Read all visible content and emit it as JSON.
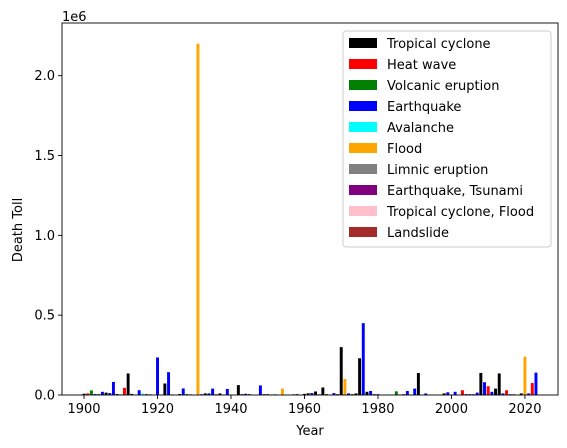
{
  "chart_data": {
    "type": "bar",
    "title": "",
    "xlabel": "Year",
    "ylabel": "Death Toll",
    "offset_label": "1e6",
    "xlim": [
      1894,
      2029
    ],
    "ylim": [
      0,
      2330000
    ],
    "x_ticks": [
      1900,
      1920,
      1940,
      1960,
      1980,
      2000,
      2020
    ],
    "x_tick_labels": [
      "1900",
      "1920",
      "1940",
      "1960",
      "1980",
      "2000",
      "2020"
    ],
    "y_ticks": [
      0,
      500000,
      1000000,
      1500000,
      2000000
    ],
    "y_tick_labels": [
      "0.0",
      "0.5",
      "1.0",
      "1.5",
      "2.0"
    ],
    "bar_width": 0.8,
    "legend_position": "top-right",
    "categories": [
      {
        "name": "Tropical cyclone",
        "color": "#000000"
      },
      {
        "name": "Heat wave",
        "color": "#ff0000"
      },
      {
        "name": "Volcanic eruption",
        "color": "#008000"
      },
      {
        "name": "Earthquake",
        "color": "#0000ff"
      },
      {
        "name": "Avalanche",
        "color": "#00ffff"
      },
      {
        "name": "Flood",
        "color": "#ffa500"
      },
      {
        "name": "Limnic eruption",
        "color": "#808080"
      },
      {
        "name": "Earthquake, Tsunami",
        "color": "#800080"
      },
      {
        "name": "Tropical cyclone, Flood",
        "color": "#ffc0cb"
      },
      {
        "name": "Landslide",
        "color": "#a52a2a"
      }
    ],
    "bars": [
      {
        "year": 1900,
        "value": 8000,
        "category": "Tropical cyclone"
      },
      {
        "year": 1901,
        "value": 10000,
        "category": "Heat wave"
      },
      {
        "year": 1902,
        "value": 29000,
        "category": "Volcanic eruption"
      },
      {
        "year": 1903,
        "value": 6000,
        "category": "Earthquake"
      },
      {
        "year": 1904,
        "value": 5000,
        "category": "Tropical cyclone"
      },
      {
        "year": 1905,
        "value": 20000,
        "category": "Earthquake"
      },
      {
        "year": 1906,
        "value": 15000,
        "category": "Tropical cyclone"
      },
      {
        "year": 1907,
        "value": 12000,
        "category": "Earthquake"
      },
      {
        "year": 1908,
        "value": 82000,
        "category": "Earthquake"
      },
      {
        "year": 1909,
        "value": 6000,
        "category": "Tropical cyclone"
      },
      {
        "year": 1910,
        "value": 5000,
        "category": "Avalanche"
      },
      {
        "year": 1911,
        "value": 45000,
        "category": "Heat wave"
      },
      {
        "year": 1912,
        "value": 135000,
        "category": "Tropical cyclone"
      },
      {
        "year": 1913,
        "value": 7000,
        "category": "Tropical cyclone"
      },
      {
        "year": 1915,
        "value": 30000,
        "category": "Earthquake"
      },
      {
        "year": 1916,
        "value": 9000,
        "category": "Avalanche"
      },
      {
        "year": 1917,
        "value": 5000,
        "category": "Tropical cyclone"
      },
      {
        "year": 1918,
        "value": 4000,
        "category": "Earthquake"
      },
      {
        "year": 1920,
        "value": 235000,
        "category": "Earthquake"
      },
      {
        "year": 1922,
        "value": 72000,
        "category": "Tropical cyclone"
      },
      {
        "year": 1923,
        "value": 143000,
        "category": "Earthquake"
      },
      {
        "year": 1924,
        "value": 5000,
        "category": "Flood"
      },
      {
        "year": 1926,
        "value": 6000,
        "category": "Tropical cyclone"
      },
      {
        "year": 1927,
        "value": 41000,
        "category": "Earthquake"
      },
      {
        "year": 1928,
        "value": 5000,
        "category": "Tropical cyclone"
      },
      {
        "year": 1929,
        "value": 4000,
        "category": "Tropical cyclone"
      },
      {
        "year": 1931,
        "value": 2200000,
        "category": "Flood"
      },
      {
        "year": 1932,
        "value": 5000,
        "category": "Earthquake"
      },
      {
        "year": 1933,
        "value": 10000,
        "category": "Tropical cyclone"
      },
      {
        "year": 1934,
        "value": 10000,
        "category": "Earthquake"
      },
      {
        "year": 1935,
        "value": 40000,
        "category": "Earthquake"
      },
      {
        "year": 1936,
        "value": 5000,
        "category": "Heat wave"
      },
      {
        "year": 1937,
        "value": 10000,
        "category": "Tropical cyclone"
      },
      {
        "year": 1939,
        "value": 38000,
        "category": "Earthquake"
      },
      {
        "year": 1942,
        "value": 62000,
        "category": "Tropical cyclone"
      },
      {
        "year": 1943,
        "value": 5000,
        "category": "Tropical cyclone"
      },
      {
        "year": 1944,
        "value": 8000,
        "category": "Earthquake"
      },
      {
        "year": 1945,
        "value": 5000,
        "category": "Tropical cyclone"
      },
      {
        "year": 1948,
        "value": 60000,
        "category": "Earthquake"
      },
      {
        "year": 1949,
        "value": 5000,
        "category": "Tropical cyclone"
      },
      {
        "year": 1950,
        "value": 5000,
        "category": "Tropical cyclone"
      },
      {
        "year": 1951,
        "value": 4000,
        "category": "Flood"
      },
      {
        "year": 1952,
        "value": 4000,
        "category": "Tropical cyclone"
      },
      {
        "year": 1954,
        "value": 40000,
        "category": "Flood"
      },
      {
        "year": 1957,
        "value": 4000,
        "category": "Tropical cyclone"
      },
      {
        "year": 1958,
        "value": 5000,
        "category": "Tropical cyclone"
      },
      {
        "year": 1960,
        "value": 7000,
        "category": "Tropical cyclone"
      },
      {
        "year": 1961,
        "value": 11000,
        "category": "Tropical cyclone"
      },
      {
        "year": 1962,
        "value": 12000,
        "category": "Earthquake"
      },
      {
        "year": 1963,
        "value": 22000,
        "category": "Tropical cyclone"
      },
      {
        "year": 1964,
        "value": 4000,
        "category": "Tropical cyclone"
      },
      {
        "year": 1965,
        "value": 47000,
        "category": "Tropical cyclone"
      },
      {
        "year": 1966,
        "value": 5000,
        "category": "Tropical cyclone"
      },
      {
        "year": 1968,
        "value": 12000,
        "category": "Earthquake"
      },
      {
        "year": 1969,
        "value": 5000,
        "category": "Tropical cyclone"
      },
      {
        "year": 1970,
        "value": 300000,
        "category": "Tropical cyclone"
      },
      {
        "year": 1971,
        "value": 100000,
        "category": "Flood"
      },
      {
        "year": 1972,
        "value": 10000,
        "category": "Earthquake"
      },
      {
        "year": 1973,
        "value": 5000,
        "category": "Tropical cyclone"
      },
      {
        "year": 1974,
        "value": 10000,
        "category": "Tropical cyclone"
      },
      {
        "year": 1975,
        "value": 230000,
        "category": "Tropical cyclone"
      },
      {
        "year": 1976,
        "value": 450000,
        "category": "Earthquake"
      },
      {
        "year": 1977,
        "value": 20000,
        "category": "Tropical cyclone"
      },
      {
        "year": 1978,
        "value": 25000,
        "category": "Earthquake"
      },
      {
        "year": 1979,
        "value": 5000,
        "category": "Tropical cyclone"
      },
      {
        "year": 1980,
        "value": 5000,
        "category": "Earthquake"
      },
      {
        "year": 1985,
        "value": 23000,
        "category": "Volcanic eruption"
      },
      {
        "year": 1986,
        "value": 1700,
        "category": "Limnic eruption"
      },
      {
        "year": 1987,
        "value": 5000,
        "category": "Tropical cyclone"
      },
      {
        "year": 1988,
        "value": 25000,
        "category": "Earthquake"
      },
      {
        "year": 1990,
        "value": 40000,
        "category": "Earthquake"
      },
      {
        "year": 1991,
        "value": 138000,
        "category": "Tropical cyclone"
      },
      {
        "year": 1993,
        "value": 10000,
        "category": "Earthquake"
      },
      {
        "year": 1998,
        "value": 10000,
        "category": "Tropical cyclone"
      },
      {
        "year": 1999,
        "value": 17000,
        "category": "Earthquake"
      },
      {
        "year": 2001,
        "value": 20000,
        "category": "Earthquake"
      },
      {
        "year": 2003,
        "value": 30000,
        "category": "Heat wave"
      },
      {
        "year": 2004,
        "value": 6000,
        "category": "Earthquake, Tsunami"
      },
      {
        "year": 2005,
        "value": 5000,
        "category": "Tropical cyclone"
      },
      {
        "year": 2006,
        "value": 5000,
        "category": "Earthquake"
      },
      {
        "year": 2007,
        "value": 15000,
        "category": "Earthquake"
      },
      {
        "year": 2008,
        "value": 138000,
        "category": "Tropical cyclone"
      },
      {
        "year": 2009,
        "value": 80000,
        "category": "Earthquake"
      },
      {
        "year": 2010,
        "value": 55000,
        "category": "Heat wave"
      },
      {
        "year": 2011,
        "value": 20000,
        "category": "Earthquake"
      },
      {
        "year": 2012,
        "value": 40000,
        "category": "Tropical cyclone"
      },
      {
        "year": 2013,
        "value": 135000,
        "category": "Tropical cyclone"
      },
      {
        "year": 2014,
        "value": 10000,
        "category": "Earthquake"
      },
      {
        "year": 2015,
        "value": 30000,
        "category": "Heat wave"
      },
      {
        "year": 2016,
        "value": 5000,
        "category": "Earthquake"
      },
      {
        "year": 2017,
        "value": 5000,
        "category": "Landslide"
      },
      {
        "year": 2019,
        "value": 10000,
        "category": "Tropical cyclone"
      },
      {
        "year": 2020,
        "value": 240000,
        "category": "Flood"
      },
      {
        "year": 2021,
        "value": 10000,
        "category": "Earthquake"
      },
      {
        "year": 2022,
        "value": 75000,
        "category": "Heat wave"
      },
      {
        "year": 2023,
        "value": 140000,
        "category": "Earthquake"
      }
    ]
  }
}
